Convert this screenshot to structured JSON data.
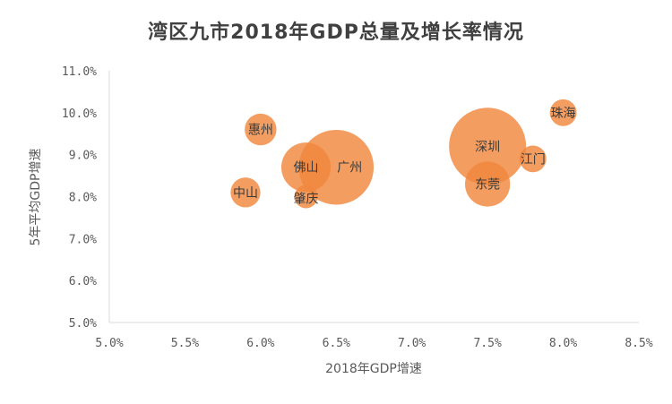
{
  "chart_data": {
    "type": "bubble",
    "title": "湾区九市2018年GDP总量及增长率情况",
    "xlabel": "2018年GDP增速",
    "ylabel": "5年平均GDP增速",
    "xlim": [
      5.0,
      8.5
    ],
    "ylim": [
      5.0,
      11.0
    ],
    "xticks": [
      "5.0%",
      "5.5%",
      "6.0%",
      "6.5%",
      "7.0%",
      "7.5%",
      "8.0%",
      "8.5%"
    ],
    "yticks": [
      "5.0%",
      "6.0%",
      "7.0%",
      "8.0%",
      "9.0%",
      "10.0%",
      "11.0%"
    ],
    "grid": false,
    "bubble_color": "#F0883E",
    "points": [
      {
        "label": "广州",
        "x": 6.5,
        "y": 8.7,
        "size": 22859
      },
      {
        "label": "深圳",
        "x": 7.5,
        "y": 9.2,
        "size": 24222
      },
      {
        "label": "佛山",
        "x": 6.3,
        "y": 8.7,
        "size": 9935
      },
      {
        "label": "东莞",
        "x": 7.5,
        "y": 8.3,
        "size": 8279
      },
      {
        "label": "惠州",
        "x": 6.0,
        "y": 9.6,
        "size": 4103
      },
      {
        "label": "中山",
        "x": 5.9,
        "y": 8.1,
        "size": 3633
      },
      {
        "label": "江门",
        "x": 7.8,
        "y": 8.9,
        "size": 2900
      },
      {
        "label": "珠海",
        "x": 8.0,
        "y": 10.0,
        "size": 2914
      },
      {
        "label": "肇庆",
        "x": 6.3,
        "y": 8.0,
        "size": 2201
      }
    ]
  }
}
